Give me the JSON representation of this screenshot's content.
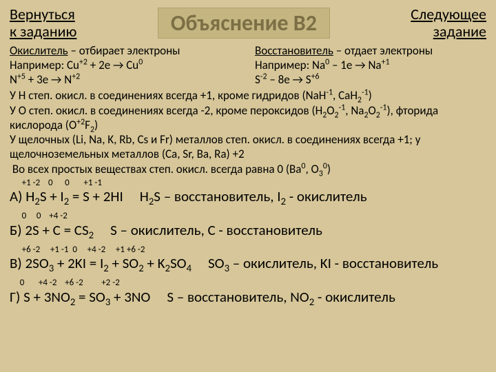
{
  "colors": {
    "background": "#d6c699",
    "text": "#000000",
    "titleFill": "#c4b581",
    "titleText": "#7d6f45",
    "titleBorder": "#b0a06e"
  },
  "fonts": {
    "nav": 22,
    "title": 32,
    "body": 17,
    "equation": 21
  },
  "nav": {
    "back": "Вернуться\nк заданию",
    "next": "Следующее\nзадание"
  },
  "title": "Объяснение В2",
  "definitions": {
    "oxidizer": {
      "label": "Окислитель",
      "desc": " – отбирает электроны",
      "ex1": "Например: Cu+2 + 2e → Cu0",
      "ex2": "N+5 + 3e → N+2"
    },
    "reducer": {
      "label": "Восстановитель",
      "desc": " – отдает электроны",
      "ex1": "Например: Na0 – 1e → Na+1",
      "ex2": "S-2 – 8e → S+6"
    }
  },
  "rules": {
    "r1": "У H степ. окисл. в соединениях всегда +1, кроме гидридов (NaH-1, CaH2-1)",
    "r2": "У O степ. окисл. в соединениях всегда -2, кроме пероксидов (H2O2-1, Na2O2-1), фторида кислорода (O+2F2)",
    "r3": "У щелочных (Li, Na, K, Rb, Cs и Fr) металлов степ. окисл. в соединениях всегда +1; у щелочноземельных металлов (Ca, Sr, Ba, Ra) +2",
    "r4": " Во всех простых веществах степ. окисл. всегда равна 0 (Ba0, O30)"
  },
  "equations": {
    "A": {
      "ox": "       +1 -2     0       0        +1 -1",
      "eq": "А) H2S + I2 = S + 2HI",
      "ans": "H2S – восстановитель, I2 - окислитель"
    },
    "B": {
      "ox": "      0     0    +4 -2",
      "eq": "Б) 2S + C = CS2",
      "ans": "S – окислитель, C - восстановитель"
    },
    "V": {
      "ox": "       +6 -2       +1 -1   0      +4  -2      +1 +6 -2",
      "eq": "В) 2SO3 + 2KI = I2 + SO2 + K2SO4",
      "ans": "SO3 – окислитель, KI - восстановитель"
    },
    "G": {
      "ox": "       0        +4  -2     +6 -2          +2 -2",
      "eq": "Г) S + 3NO2 = SO3 + 3NO",
      "ans": "S – восстановитель, NO2 - окислитель"
    }
  }
}
